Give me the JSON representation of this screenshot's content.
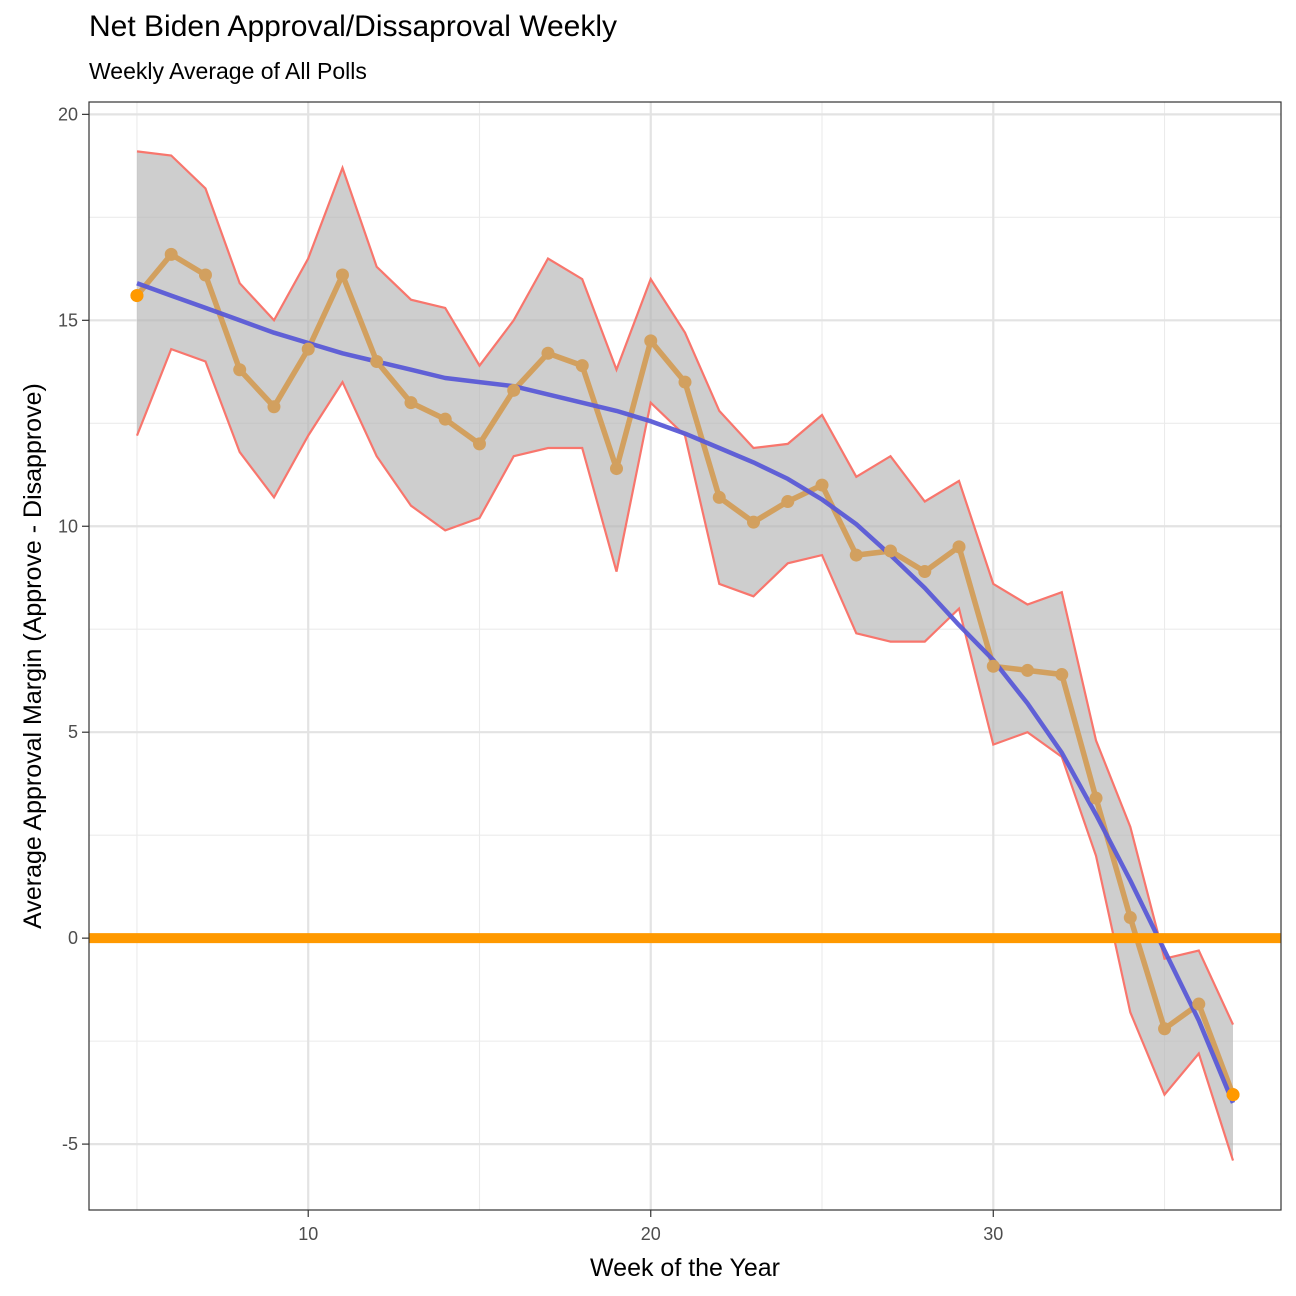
{
  "chart_data": {
    "type": "line",
    "title": "Net Biden Approval/Dissaproval Weekly",
    "subtitle": "Weekly Average of All Polls",
    "xlabel": "Week of the Year",
    "ylabel": "Average Approval Margin (Approve - Disapprove)",
    "xlim": [
      3.6,
      38.4
    ],
    "ylim": [
      -6.6,
      20.3
    ],
    "x_ticks": [
      10,
      20,
      30
    ],
    "y_ticks": [
      -5,
      0,
      5,
      10,
      15,
      20
    ],
    "x_tick_labels": [
      "10",
      "20",
      "30"
    ],
    "y_tick_labels": [
      "-5",
      "0",
      "5",
      "10",
      "15",
      "20"
    ],
    "grid": true,
    "reference_line": {
      "y": 0,
      "color": "#FF9900"
    },
    "x": [
      5,
      6,
      7,
      8,
      9,
      10,
      11,
      12,
      13,
      14,
      15,
      16,
      17,
      18,
      19,
      20,
      21,
      22,
      23,
      24,
      25,
      26,
      27,
      28,
      29,
      30,
      31,
      32,
      33,
      34,
      35,
      36,
      37
    ],
    "series": [
      {
        "role": "weekly_average",
        "color": "#D2A05F",
        "values": [
          15.6,
          16.6,
          16.1,
          13.8,
          12.9,
          14.3,
          16.1,
          14.0,
          13.0,
          12.6,
          12.0,
          13.3,
          14.2,
          13.9,
          11.4,
          14.5,
          13.5,
          10.7,
          10.1,
          10.6,
          11.0,
          9.3,
          9.4,
          8.9,
          9.5,
          6.6,
          6.5,
          6.4,
          3.4,
          0.5,
          -2.2,
          -1.6,
          -3.8
        ]
      },
      {
        "role": "upper_band",
        "color": "#F8766D",
        "values": [
          19.1,
          19.0,
          18.2,
          15.9,
          15.0,
          16.5,
          18.7,
          16.3,
          15.5,
          15.3,
          13.9,
          15.0,
          16.5,
          16.0,
          13.8,
          16.0,
          14.7,
          12.8,
          11.9,
          12.0,
          12.7,
          11.2,
          11.7,
          10.6,
          11.1,
          8.6,
          8.1,
          8.4,
          4.8,
          2.7,
          -0.5,
          -0.3,
          -2.1
        ]
      },
      {
        "role": "lower_band",
        "color": "#F8766D",
        "values": [
          12.2,
          14.3,
          14.0,
          11.8,
          10.7,
          12.2,
          13.5,
          11.7,
          10.5,
          9.9,
          10.2,
          11.7,
          11.9,
          11.9,
          8.9,
          13.0,
          12.2,
          8.6,
          8.3,
          9.1,
          9.3,
          7.4,
          7.2,
          7.2,
          8.0,
          4.7,
          5.0,
          4.4,
          2.0,
          -1.8,
          -3.8,
          -2.8,
          -5.4
        ]
      },
      {
        "role": "smooth_trend",
        "color": "#5A5AD6",
        "values": [
          15.9,
          15.6,
          15.3,
          15.0,
          14.7,
          14.45,
          14.2,
          14.0,
          13.8,
          13.6,
          13.5,
          13.4,
          13.2,
          13.0,
          12.8,
          12.55,
          12.25,
          11.9,
          11.55,
          11.15,
          10.65,
          10.05,
          9.3,
          8.5,
          7.6,
          6.75,
          5.7,
          4.5,
          3.0,
          1.4,
          -0.3,
          -2.0,
          -4.0
        ]
      }
    ],
    "highlight_points": [
      {
        "x": 5,
        "y": 15.6,
        "color": "#FF9900"
      },
      {
        "x": 37,
        "y": -3.8,
        "color": "#FF9900"
      }
    ]
  }
}
